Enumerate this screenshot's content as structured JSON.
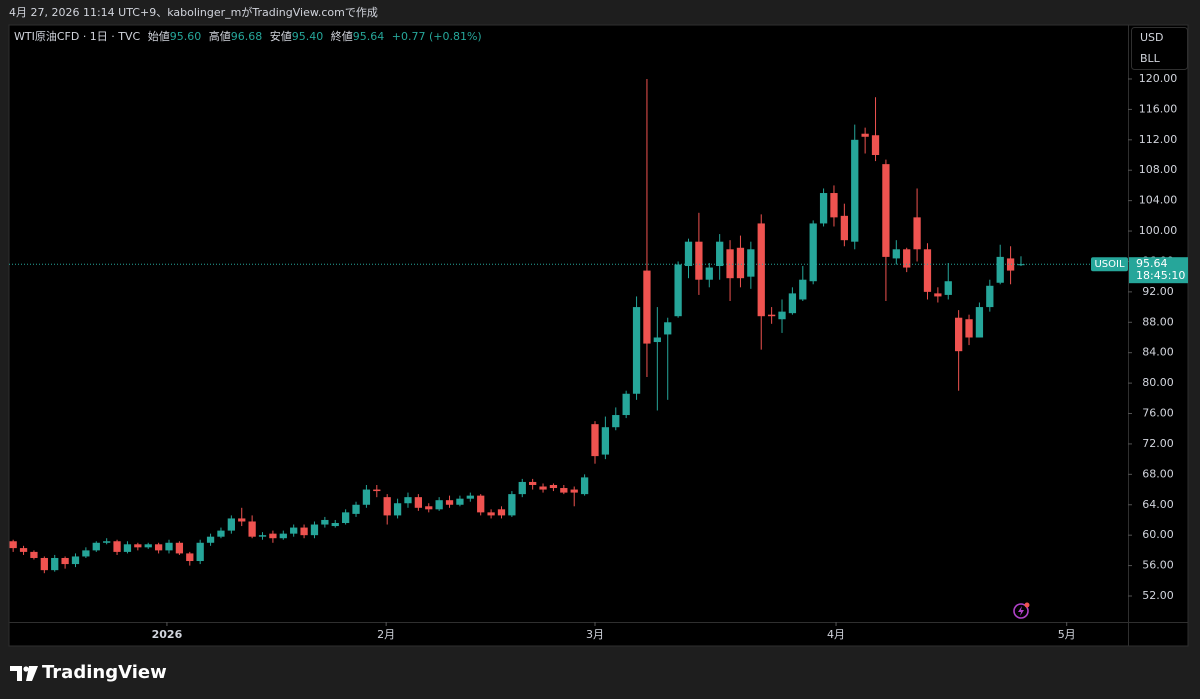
{
  "header": {
    "caption": "4月 27, 2026 11:14 UTC+9、kabolinger_mがTradingView.comで作成"
  },
  "legend": {
    "symbol": "WTI原油CFD · 1日 · TVC",
    "open_label": "始値",
    "open": "95.60",
    "high_label": "高値",
    "high": "96.68",
    "low_label": "安値",
    "low": "95.40",
    "close_label": "終値",
    "close": "95.64",
    "change": "+0.77 (+0.81%)"
  },
  "currency": {
    "unit": "USD",
    "measure": "BLL"
  },
  "price_tag": {
    "symbol": "USOIL",
    "price": "95.64",
    "countdown": "18:45:10"
  },
  "footer": {
    "brand": "TradingView"
  },
  "chart_data": {
    "type": "candlestick",
    "up_color": "#26a69a",
    "down_color": "#ef5350",
    "last_price": 95.64,
    "xlim": [
      -0.4,
      107.3
    ],
    "xticks": [
      {
        "value": 14.8,
        "label": "2026"
      },
      {
        "value": 35.9,
        "label": "2月"
      },
      {
        "value": 56.0,
        "label": "3月"
      },
      {
        "value": 79.2,
        "label": "4月"
      },
      {
        "value": 101.4,
        "label": "5月"
      }
    ],
    "ylim": [
      48.58,
      127.1
    ],
    "yticks": [
      {
        "value": 52,
        "label": "52.00"
      },
      {
        "value": 56,
        "label": "56.00"
      },
      {
        "value": 60,
        "label": "60.00"
      },
      {
        "value": 64,
        "label": "64.00"
      },
      {
        "value": 68,
        "label": "68.00"
      },
      {
        "value": 72,
        "label": "72.00"
      },
      {
        "value": 76,
        "label": "76.00"
      },
      {
        "value": 80,
        "label": "80.00"
      },
      {
        "value": 84,
        "label": "84.00"
      },
      {
        "value": 88,
        "label": "88.00"
      },
      {
        "value": 92,
        "label": "92.00"
      },
      {
        "value": 96,
        "label": "96.00"
      },
      {
        "value": 100,
        "label": "100.00"
      },
      {
        "value": 104,
        "label": "104.00"
      },
      {
        "value": 108,
        "label": "108.00"
      },
      {
        "value": 112,
        "label": "112.00"
      },
      {
        "value": 116,
        "label": "116.00"
      },
      {
        "value": 120,
        "label": "120.00"
      }
    ],
    "open": [
      59.2,
      58.3,
      57.8,
      57.0,
      55.4,
      57.0,
      56.2,
      57.2,
      58.0,
      59.0,
      59.2,
      57.8,
      58.8,
      58.4,
      58.8,
      58.0,
      59.0,
      57.6,
      56.6,
      59.0,
      59.8,
      60.6,
      62.2,
      61.8,
      59.8,
      60.2,
      59.6,
      60.2,
      61.0,
      60.0,
      61.4,
      61.2,
      61.6,
      62.8,
      64.0,
      66.0,
      65.0,
      62.6,
      64.2,
      65.0,
      63.8,
      63.4,
      64.6,
      64.0,
      64.8,
      65.2,
      63.0,
      63.4,
      62.6,
      65.4,
      67.0,
      66.4,
      66.6,
      66.2,
      66.0,
      65.4,
      74.6,
      70.6,
      74.2,
      75.8,
      78.6,
      94.8,
      85.4,
      86.4,
      88.8,
      95.4,
      98.6,
      93.6,
      95.4,
      97.6,
      97.8,
      94.0,
      101.0,
      89.0,
      88.4,
      89.2,
      91.0,
      93.4,
      101.0,
      105.0,
      102.0,
      98.6,
      112.8,
      112.6,
      108.8,
      96.4,
      97.6,
      101.8,
      97.6,
      91.8,
      91.6,
      88.6,
      88.4,
      86.0,
      90.0,
      93.2,
      96.4,
      95.6
    ],
    "high": [
      59.4,
      58.6,
      58.0,
      57.2,
      57.4,
      57.2,
      57.6,
      58.4,
      59.2,
      59.6,
      59.4,
      59.2,
      59.0,
      59.0,
      59.0,
      59.4,
      59.2,
      57.8,
      59.4,
      60.2,
      61.0,
      62.6,
      63.6,
      62.6,
      60.4,
      60.6,
      60.6,
      61.4,
      61.4,
      61.8,
      62.4,
      62.0,
      63.4,
      64.4,
      66.6,
      66.6,
      65.4,
      64.8,
      65.6,
      65.4,
      64.2,
      65.0,
      65.2,
      65.2,
      65.6,
      65.4,
      63.4,
      63.8,
      65.8,
      67.4,
      67.4,
      66.8,
      66.8,
      66.6,
      66.4,
      68.0,
      75.0,
      75.6,
      76.8,
      79.0,
      91.4,
      120.0,
      90.0,
      88.6,
      96.0,
      99.0,
      102.4,
      95.8,
      99.6,
      98.8,
      99.4,
      98.6,
      102.2,
      90.0,
      91.0,
      92.6,
      95.4,
      101.4,
      105.6,
      106.0,
      103.6,
      114.0,
      113.6,
      117.6,
      109.4,
      98.8,
      97.8,
      105.6,
      98.4,
      92.6,
      95.8,
      89.6,
      89.0,
      90.6,
      93.6,
      98.2,
      98.0,
      96.68
    ],
    "low": [
      57.8,
      57.4,
      56.8,
      55.0,
      55.2,
      55.6,
      55.8,
      57.0,
      57.8,
      58.8,
      57.4,
      57.6,
      58.0,
      58.2,
      57.6,
      57.6,
      57.4,
      56.0,
      56.2,
      58.6,
      59.6,
      60.2,
      61.2,
      59.6,
      59.4,
      59.0,
      59.4,
      59.8,
      59.6,
      59.6,
      61.0,
      61.0,
      61.4,
      62.4,
      63.6,
      65.0,
      61.4,
      62.2,
      63.6,
      63.2,
      63.0,
      63.2,
      63.6,
      63.8,
      64.4,
      62.6,
      62.2,
      62.2,
      62.4,
      65.0,
      66.0,
      65.6,
      65.8,
      65.4,
      63.8,
      65.2,
      69.4,
      70.0,
      73.8,
      75.4,
      77.8,
      80.8,
      76.4,
      77.8,
      88.6,
      93.8,
      91.6,
      92.6,
      93.6,
      90.8,
      92.6,
      92.4,
      84.4,
      87.8,
      86.6,
      89.0,
      90.8,
      93.0,
      100.6,
      100.6,
      98.0,
      97.6,
      110.2,
      109.2,
      90.8,
      95.6,
      94.6,
      96.0,
      91.0,
      90.6,
      91.0,
      79.0,
      85.0,
      86.0,
      89.4,
      93.0,
      93.0,
      95.4
    ],
    "close": [
      58.3,
      57.8,
      57.0,
      55.4,
      57.0,
      56.2,
      57.2,
      58.0,
      59.0,
      59.2,
      57.8,
      58.8,
      58.4,
      58.8,
      58.0,
      59.0,
      57.6,
      56.6,
      59.0,
      59.8,
      60.6,
      62.2,
      61.8,
      59.8,
      60.0,
      59.6,
      60.2,
      61.0,
      60.0,
      61.4,
      62.0,
      61.6,
      63.0,
      64.0,
      66.0,
      65.8,
      62.6,
      64.2,
      65.0,
      63.6,
      63.4,
      64.6,
      64.0,
      64.8,
      65.2,
      63.0,
      62.6,
      62.6,
      65.4,
      67.0,
      66.6,
      66.0,
      66.2,
      65.6,
      65.6,
      67.6,
      70.4,
      74.2,
      75.8,
      78.6,
      90.0,
      85.2,
      86.0,
      88.0,
      95.6,
      98.6,
      93.6,
      95.2,
      98.6,
      93.8,
      93.8,
      97.6,
      88.8,
      88.8,
      89.4,
      91.8,
      93.6,
      101.0,
      105.0,
      101.8,
      98.8,
      112.0,
      112.4,
      110.0,
      96.6,
      97.6,
      95.2,
      97.6,
      92.0,
      91.4,
      93.4,
      84.2,
      86.0,
      90.0,
      92.8,
      96.6,
      94.8,
      95.64
    ]
  }
}
